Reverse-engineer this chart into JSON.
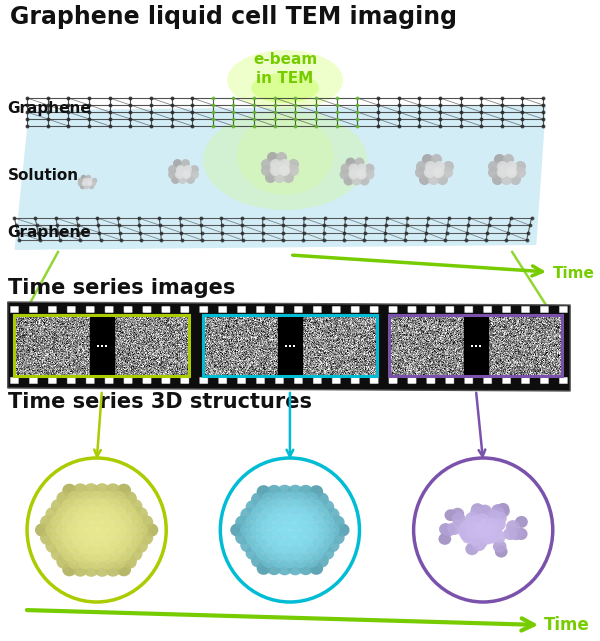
{
  "title": "Graphene liquid cell TEM imaging",
  "title_color": "#111111",
  "title_fontsize": 17,
  "ebeam_label": "e-beam\nin TEM",
  "ebeam_color": "#77cc00",
  "graphene_label": "Graphene",
  "solution_label": "Solution",
  "time_label": "Time",
  "time_color": "#77cc00",
  "time_series_images_label": "Time series images",
  "time_series_3d_label": "Time series 3D structures",
  "section_label_color": "#111111",
  "section_label_fontsize": 15,
  "bg_color": "#ffffff",
  "cell_fill_color": "#c5e8f5",
  "arrow_color": "#77cc00",
  "frame1_color": "#aacc00",
  "frame2_color": "#00bcd4",
  "frame3_color": "#7b52ab",
  "circle1_color": "#aacc00",
  "circle2_color": "#00bcd4",
  "circle3_color": "#7b52ab",
  "arrow1_color": "#aacc00",
  "arrow2_color": "#00bcd4",
  "arrow3_color": "#7b52ab"
}
